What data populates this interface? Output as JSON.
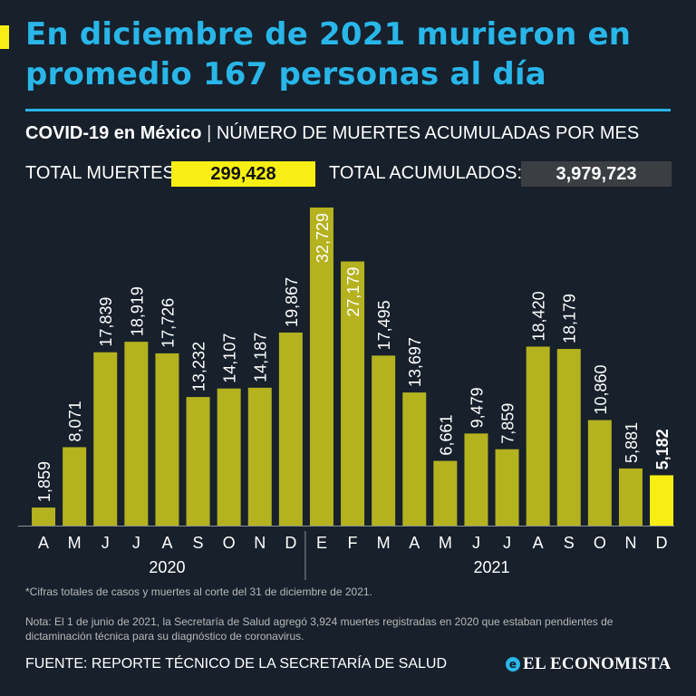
{
  "headline": "En diciembre de 2021 murieron en promedio 167 personas al día",
  "subtitle": {
    "strong": "COVID-19 en México",
    "separator": "|",
    "rest": "NÚMERO DE MUERTES ACUMULADAS POR MES"
  },
  "totals": {
    "deaths_label": "TOTAL MUERTES:",
    "deaths_value": "299,428",
    "cumulative_label": "TOTAL ACUMULADOS:",
    "cumulative_value": "3,979,723"
  },
  "colors": {
    "background": "#17202b",
    "headline": "#29b6e8",
    "bar": "#b4b21f",
    "highlight_bar": "#f7ee13",
    "cumulative_box": "#3b3f44"
  },
  "chart_data": {
    "type": "bar",
    "title": "NÚMERO DE MUERTES ACUMULADAS POR MES",
    "categories": [
      "A",
      "M",
      "J",
      "J",
      "A",
      "S",
      "O",
      "N",
      "D",
      "E",
      "F",
      "M",
      "A",
      "M",
      "J",
      "J",
      "A",
      "S",
      "O",
      "N",
      "D"
    ],
    "values": [
      1859,
      8071,
      17839,
      18919,
      17726,
      13232,
      14107,
      14187,
      19867,
      32729,
      27179,
      17495,
      13697,
      6661,
      9479,
      7859,
      18420,
      18179,
      10860,
      5881,
      5182
    ],
    "labels": [
      "1,859",
      "8,071",
      "17,839",
      "18,919",
      "17,726",
      "13,232",
      "14,107",
      "14,187",
      "19,867",
      "32,729",
      "27,179",
      "17,495",
      "13,697",
      "6,661",
      "9,479",
      "7,859",
      "18,420",
      "18,179",
      "10,860",
      "5,881",
      "5,182"
    ],
    "highlight_index": 20,
    "inside_label_indices": [
      9,
      10
    ],
    "groups": [
      {
        "label": "2020",
        "start": 0,
        "end": 8
      },
      {
        "label": "2021",
        "start": 9,
        "end": 20
      }
    ],
    "ylim": [
      0,
      32729
    ],
    "grid": false,
    "xlabel": "",
    "ylabel": ""
  },
  "footnote": "*Cifras totales de casos y muertes al corte del 31 de diciembre de 2021.",
  "note": "Nota: El 1 de junio de 2021, la Secretaría de Salud agregó 3,924 muertes registradas en 2020 que estaban pendientes de dictaminación técnica para su diagnóstico de coronavirus.",
  "source": "FUENTE: REPORTE TÉCNICO DE LA SECRETARÍA DE SALUD",
  "logo": {
    "icon": "e",
    "text": "EL ECONOMISTA"
  }
}
